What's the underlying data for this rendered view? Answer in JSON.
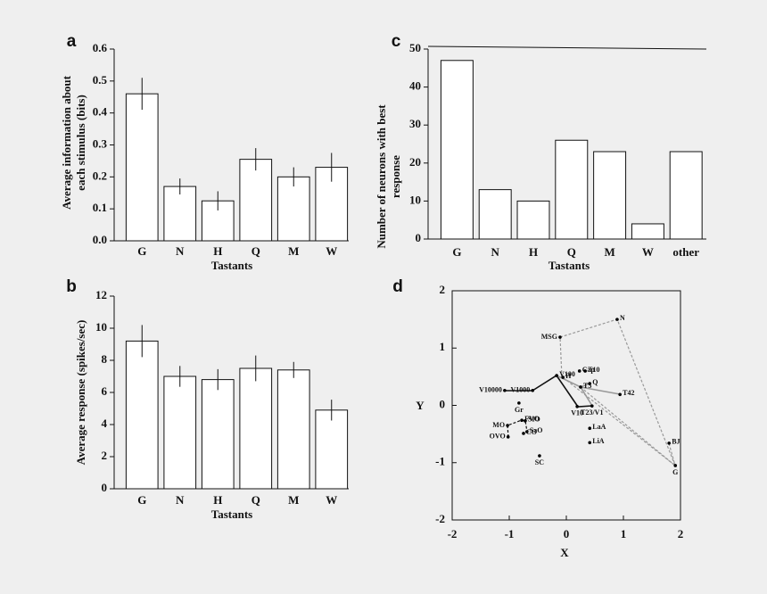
{
  "chart_data": [
    {
      "type": "bar",
      "panel": "a",
      "ylabel": [
        "Average information about",
        "each stimulus (bits)"
      ],
      "xlabel": "Tastants",
      "categories": [
        "G",
        "N",
        "H",
        "Q",
        "M",
        "W"
      ],
      "values": [
        0.46,
        0.17,
        0.125,
        0.255,
        0.2,
        0.23
      ],
      "errors": [
        0.05,
        0.025,
        0.03,
        0.035,
        0.03,
        0.045
      ],
      "color": "#ffffff",
      "ylim": [
        0,
        0.6
      ],
      "yticks": [
        {
          "value": 0,
          "label": "0.0"
        },
        0.1,
        0.2,
        0.3,
        0.4,
        0.5,
        0.6
      ],
      "grid": false
    },
    {
      "type": "bar",
      "panel": "b",
      "ylabel": [
        "Average response (spikes/sec)"
      ],
      "xlabel": "Tastants",
      "categories": [
        "G",
        "N",
        "H",
        "Q",
        "M",
        "W"
      ],
      "values": [
        9.2,
        7.0,
        6.8,
        7.5,
        7.4,
        4.9
      ],
      "errors": [
        1.0,
        0.65,
        0.65,
        0.8,
        0.5,
        0.65
      ],
      "color": "#ffffff",
      "ylim": [
        0,
        12
      ],
      "yticks": [
        0,
        2,
        4,
        6,
        8,
        10,
        12
      ],
      "grid": false
    },
    {
      "type": "bar",
      "panel": "c",
      "ylabel": [
        "Number of neurons with best",
        "response"
      ],
      "xlabel": "Tastants",
      "categories": [
        "G",
        "N",
        "H",
        "Q",
        "M",
        "W",
        "other"
      ],
      "values": [
        47,
        13,
        10,
        26,
        23,
        4,
        23
      ],
      "color": "#ffffff",
      "ylim": [
        0,
        50
      ],
      "yticks": [
        0,
        10,
        20,
        30,
        40,
        50
      ],
      "grid": false
    },
    {
      "type": "scatter",
      "panel": "d",
      "xlabel": "X",
      "ylabel": [
        "Y"
      ],
      "labels": [
        "N",
        "MSG",
        "Cap",
        "T10",
        "V100",
        "H",
        "Q",
        "T3",
        "T42",
        "V1000",
        "V10000",
        "Gr",
        "V10",
        "T23/V1",
        "LaA",
        "LiA",
        "MO",
        "FVO",
        "SIO",
        "SaO",
        "CO",
        "OVO",
        "SC",
        "BJ",
        "G"
      ],
      "x": [
        0.89,
        -0.11,
        0.23,
        0.33,
        -0.17,
        -0.06,
        0.41,
        0.25,
        0.94,
        -0.59,
        -1.08,
        -0.83,
        0.19,
        0.45,
        0.41,
        0.41,
        -1.03,
        -0.78,
        -0.72,
        -0.69,
        -0.75,
        -1.02,
        -0.47,
        1.8,
        1.91
      ],
      "y": [
        1.5,
        1.19,
        0.6,
        0.6,
        0.52,
        0.49,
        0.38,
        0.32,
        0.19,
        0.26,
        0.26,
        0.04,
        -0.02,
        -0.01,
        -0.4,
        -0.65,
        -0.35,
        -0.26,
        -0.27,
        -0.46,
        -0.49,
        -0.55,
        -0.88,
        -0.66,
        -1.05
      ],
      "color": "#000000",
      "xlim": [
        -2,
        2
      ],
      "ylim": [
        -2,
        2
      ],
      "xticks": [
        -2,
        -1,
        0,
        1,
        2
      ],
      "yticks": [
        -2,
        -1,
        0,
        1,
        2
      ],
      "grid": false
    }
  ]
}
